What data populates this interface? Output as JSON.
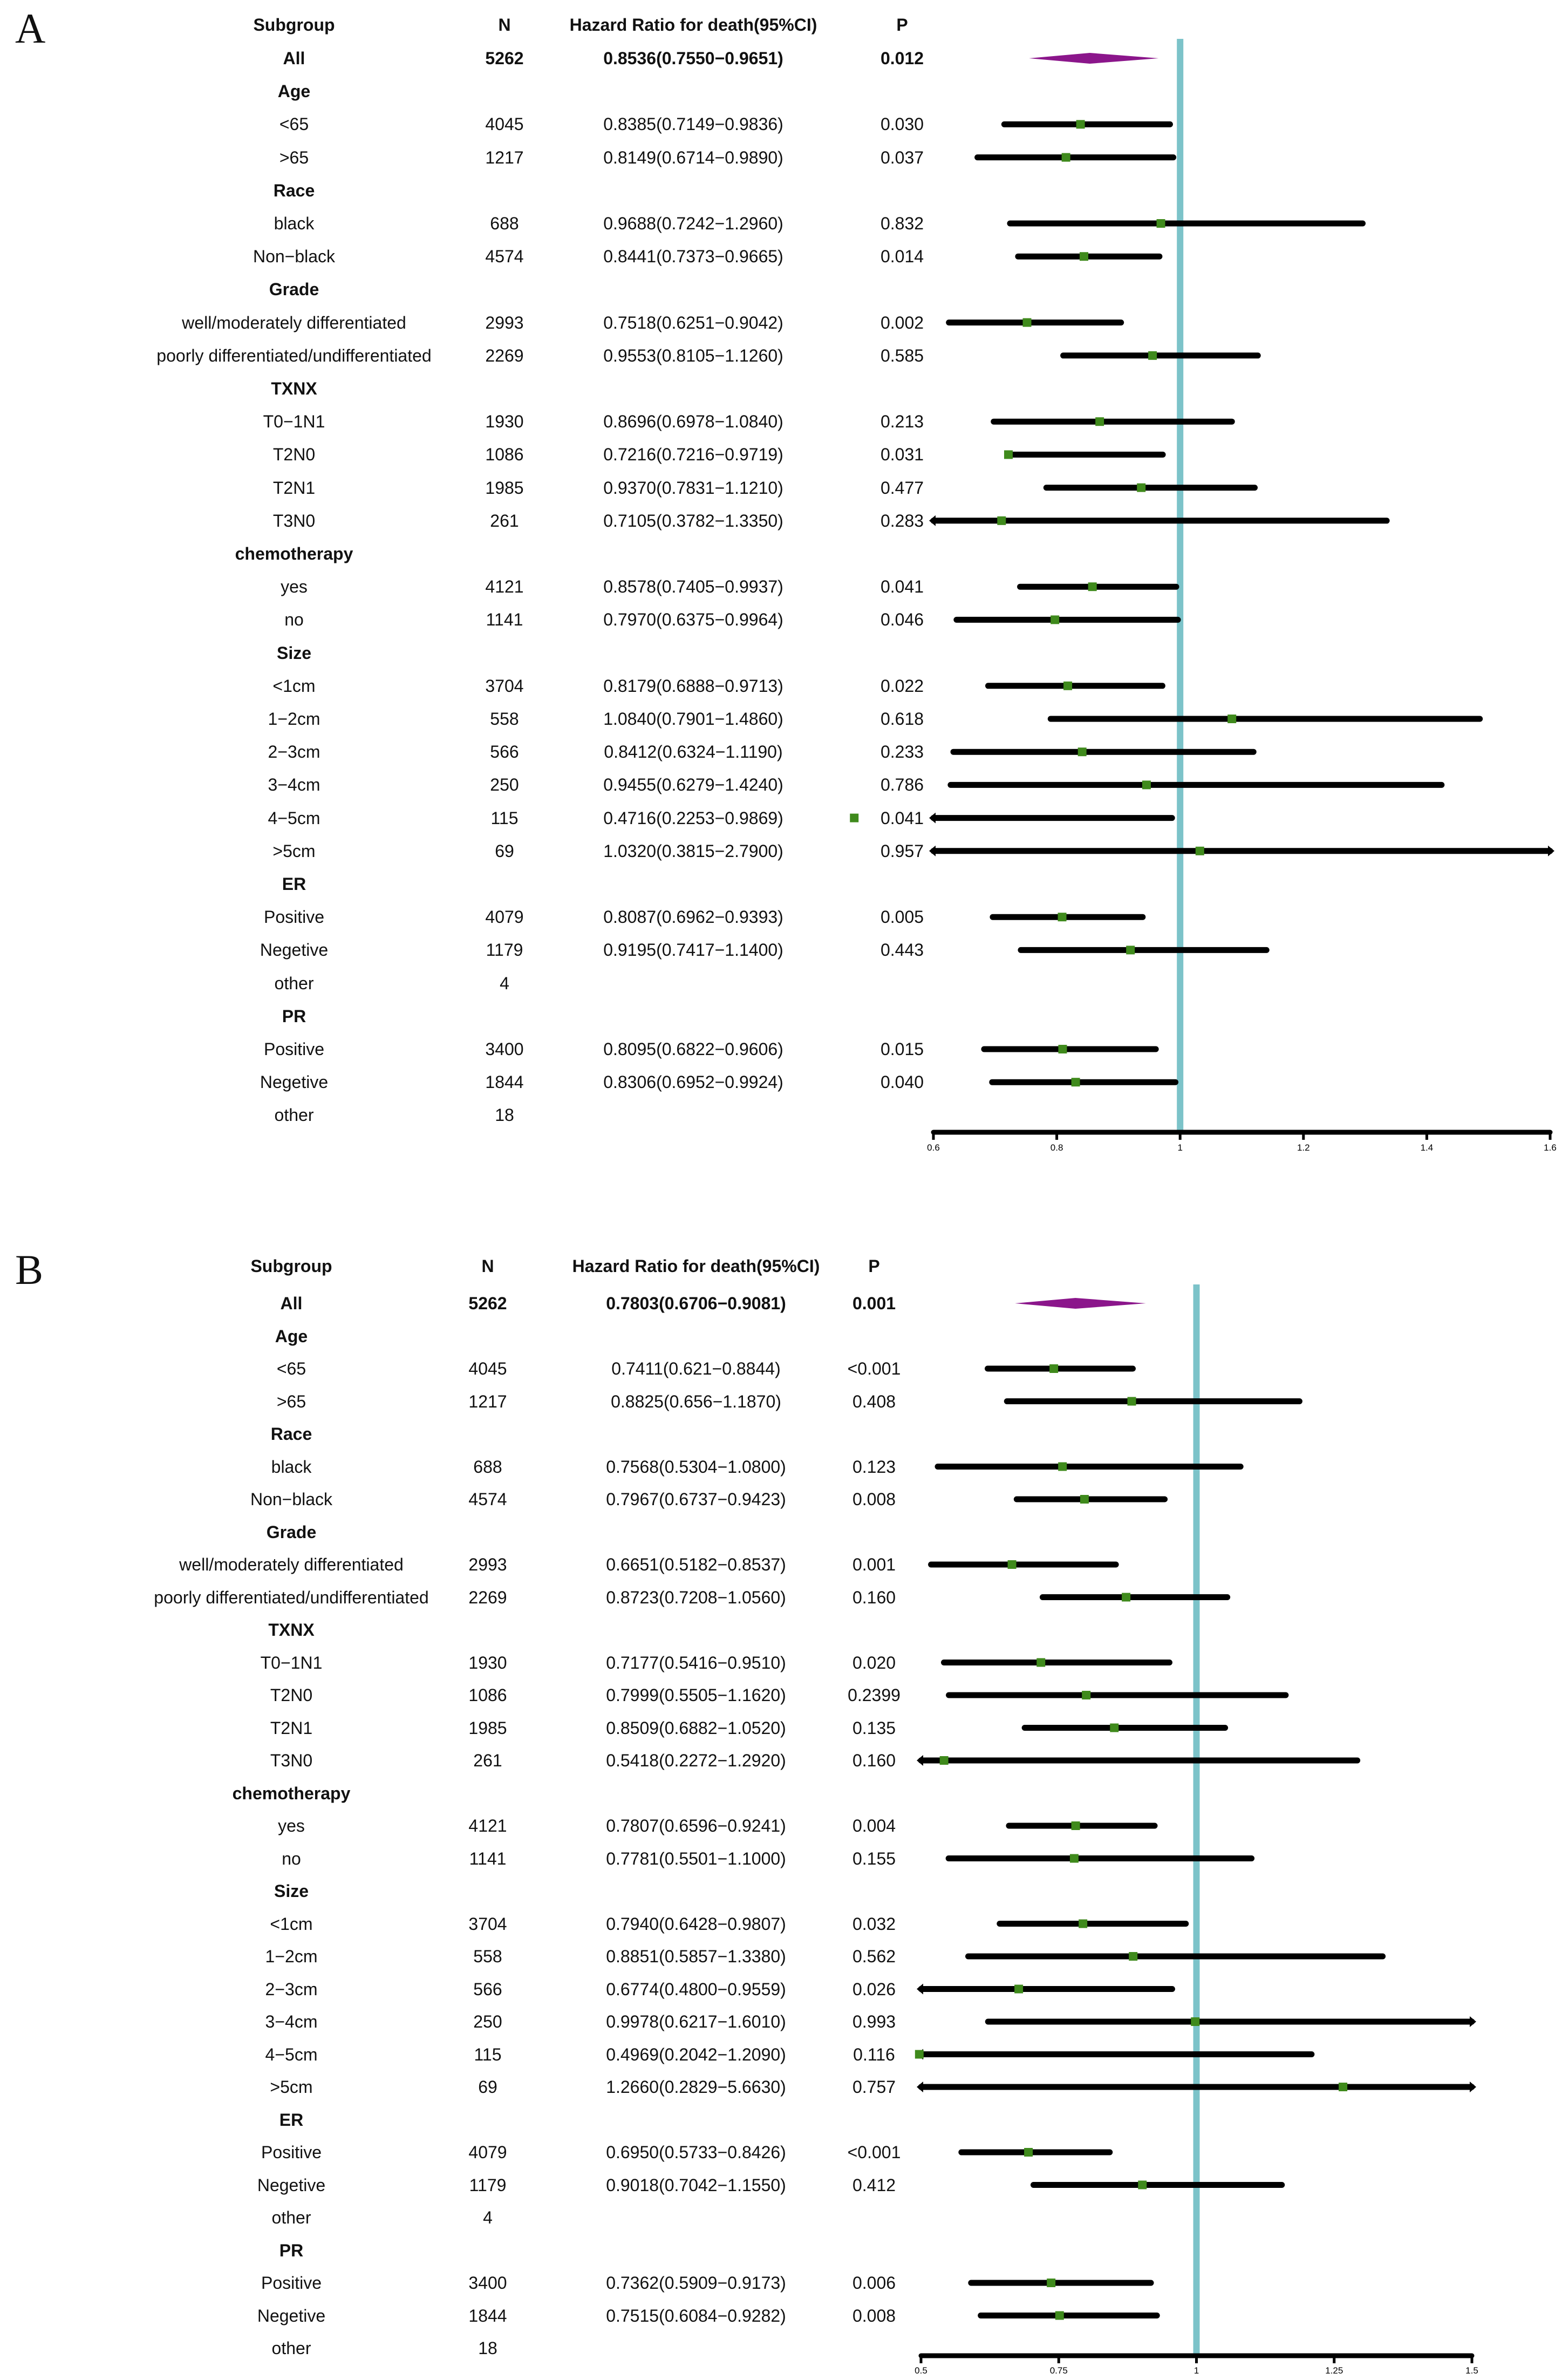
{
  "panels": [
    {
      "label": "A",
      "headers": {
        "subgroup": "Subgroup",
        "n": "N",
        "hr": "Hazard Ratio for  death(95%CI)",
        "p": "P"
      },
      "rows": [
        {
          "label": "All",
          "n": "5262",
          "hr_text": "0.8536(0.7550−0.9651)",
          "p": "0.012",
          "bold": true,
          "overall": true,
          "est": 0.8536,
          "lo": 0.755,
          "hi": 0.9651
        },
        {
          "label": "Age",
          "heading": true
        },
        {
          "label": "<65",
          "n": "4045",
          "hr_text": "0.8385(0.7149−0.9836)",
          "p": "0.030",
          "est": 0.8385,
          "lo": 0.7149,
          "hi": 0.9836
        },
        {
          "label": ">65",
          "n": "1217",
          "hr_text": "0.8149(0.6714−0.9890)",
          "p": "0.037",
          "est": 0.8149,
          "lo": 0.6714,
          "hi": 0.989
        },
        {
          "label": "Race",
          "heading": true
        },
        {
          "label": "black",
          "n": "688",
          "hr_text": "0.9688(0.7242−1.2960)",
          "p": "0.832",
          "est": 0.9688,
          "lo": 0.7242,
          "hi": 1.296
        },
        {
          "label": "Non−black",
          "n": "4574",
          "hr_text": "0.8441(0.7373−0.9665)",
          "p": "0.014",
          "est": 0.8441,
          "lo": 0.7373,
          "hi": 0.9665
        },
        {
          "label": "Grade",
          "heading": true
        },
        {
          "label": "well/moderately differentiated",
          "n": "2993",
          "hr_text": "0.7518(0.6251−0.9042)",
          "p": "0.002",
          "est": 0.7518,
          "lo": 0.6251,
          "hi": 0.9042
        },
        {
          "label": "poorly differentiated/undifferentiated",
          "n": "2269",
          "hr_text": "0.9553(0.8105−1.1260)",
          "p": "0.585",
          "est": 0.9553,
          "lo": 0.8105,
          "hi": 1.126
        },
        {
          "label": "TXNX",
          "heading": true
        },
        {
          "label": "T0−1N1",
          "n": "1930",
          "hr_text": "0.8696(0.6978−1.0840)",
          "p": "0.213",
          "est": 0.8696,
          "lo": 0.6978,
          "hi": 1.084
        },
        {
          "label": "T2N0",
          "n": "1086",
          "hr_text": "0.7216(0.7216−0.9719)",
          "p": "0.031",
          "est": 0.7216,
          "lo": 0.7216,
          "hi": 0.9719
        },
        {
          "label": "T2N1",
          "n": "1985",
          "hr_text": "0.9370(0.7831−1.1210)",
          "p": "0.477",
          "est": 0.937,
          "lo": 0.7831,
          "hi": 1.121
        },
        {
          "label": "T3N0",
          "n": "261",
          "hr_text": "0.7105(0.3782−1.3350)",
          "p": "0.283",
          "est": 0.7105,
          "lo": 0.3782,
          "hi": 1.335
        },
        {
          "label": "chemotherapy",
          "heading": true
        },
        {
          "label": "yes",
          "n": "4121",
          "hr_text": "0.8578(0.7405−0.9937)",
          "p": "0.041",
          "est": 0.8578,
          "lo": 0.7405,
          "hi": 0.9937
        },
        {
          "label": "no",
          "n": "1141",
          "hr_text": "0.7970(0.6375−0.9964)",
          "p": "0.046",
          "est": 0.797,
          "lo": 0.6375,
          "hi": 0.9964
        },
        {
          "label": "Size",
          "heading": true
        },
        {
          "label": "<1cm",
          "n": "3704",
          "hr_text": "0.8179(0.6888−0.9713)",
          "p": "0.022",
          "est": 0.8179,
          "lo": 0.6888,
          "hi": 0.9713
        },
        {
          "label": "1−2cm",
          "n": "558",
          "hr_text": "1.0840(0.7901−1.4860)",
          "p": "0.618",
          "est": 1.084,
          "lo": 0.7901,
          "hi": 1.486
        },
        {
          "label": "2−3cm",
          "n": "566",
          "hr_text": "0.8412(0.6324−1.1190)",
          "p": "0.233",
          "est": 0.8412,
          "lo": 0.6324,
          "hi": 1.119
        },
        {
          "label": "3−4cm",
          "n": "250",
          "hr_text": "0.9455(0.6279−1.4240)",
          "p": "0.786",
          "est": 0.9455,
          "lo": 0.6279,
          "hi": 1.424
        },
        {
          "label": "4−5cm",
          "n": "115",
          "hr_text": "0.4716(0.2253−0.9869)",
          "p": "0.041",
          "est": 0.4716,
          "lo": 0.2253,
          "hi": 0.9869
        },
        {
          "label": ">5cm",
          "n": "69",
          "hr_text": "1.0320(0.3815−2.7900)",
          "p": "0.957",
          "est": 1.032,
          "lo": 0.3815,
          "hi": 2.79
        },
        {
          "label": "ER",
          "heading": true
        },
        {
          "label": "Positive",
          "n": "4079",
          "hr_text": "0.8087(0.6962−0.9393)",
          "p": "0.005",
          "est": 0.8087,
          "lo": 0.6962,
          "hi": 0.9393
        },
        {
          "label": "Negetive",
          "n": "1179",
          "hr_text": "0.9195(0.7417−1.1400)",
          "p": "0.443",
          "est": 0.9195,
          "lo": 0.7417,
          "hi": 1.14
        },
        {
          "label": "other",
          "n": "4"
        },
        {
          "label": "PR",
          "heading": true
        },
        {
          "label": "Positive",
          "n": "3400",
          "hr_text": "0.8095(0.6822−0.9606)",
          "p": "0.015",
          "est": 0.8095,
          "lo": 0.6822,
          "hi": 0.9606
        },
        {
          "label": "Negetive",
          "n": "1844",
          "hr_text": "0.8306(0.6952−0.9924)",
          "p": "0.040",
          "est": 0.8306,
          "lo": 0.6952,
          "hi": 0.9924
        },
        {
          "label": "other",
          "n": "18"
        }
      ],
      "axis": {
        "min": 0.6,
        "max": 1.6,
        "ticks": [
          "0.6",
          "0.8",
          "1",
          "1.2",
          "1.4",
          "1.6"
        ],
        "ref": 1
      }
    },
    {
      "label": "B",
      "headers": {
        "subgroup": "Subgroup",
        "n": "N",
        "hr": "Hazard Ratio for  death(95%CI)",
        "p": "P"
      },
      "rows": [
        {
          "label": "All",
          "n": "5262",
          "hr_text": "0.7803(0.6706−0.9081)",
          "p": "0.001",
          "bold": true,
          "overall": true,
          "est": 0.7803,
          "lo": 0.6706,
          "hi": 0.9081
        },
        {
          "label": "Age",
          "heading": true
        },
        {
          "label": "<65",
          "n": "4045",
          "hr_text": "0.7411(0.621−0.8844)",
          "p": "<0.001",
          "est": 0.7411,
          "lo": 0.621,
          "hi": 0.8844
        },
        {
          "label": ">65",
          "n": "1217",
          "hr_text": "0.8825(0.656−1.1870)",
          "p": "0.408",
          "est": 0.8825,
          "lo": 0.656,
          "hi": 1.187
        },
        {
          "label": "Race",
          "heading": true
        },
        {
          "label": "black",
          "n": "688",
          "hr_text": "0.7568(0.5304−1.0800)",
          "p": "0.123",
          "est": 0.7568,
          "lo": 0.5304,
          "hi": 1.08
        },
        {
          "label": "Non−black",
          "n": "4574",
          "hr_text": "0.7967(0.6737−0.9423)",
          "p": "0.008",
          "est": 0.7967,
          "lo": 0.6737,
          "hi": 0.9423
        },
        {
          "label": "Grade",
          "heading": true
        },
        {
          "label": "well/moderately differentiated",
          "n": "2993",
          "hr_text": "0.6651(0.5182−0.8537)",
          "p": "0.001",
          "est": 0.6651,
          "lo": 0.5182,
          "hi": 0.8537
        },
        {
          "label": "poorly differentiated/undifferentiated",
          "n": "2269",
          "hr_text": "0.8723(0.7208−1.0560)",
          "p": "0.160",
          "est": 0.8723,
          "lo": 0.7208,
          "hi": 1.056
        },
        {
          "label": "TXNX",
          "heading": true
        },
        {
          "label": "T0−1N1",
          "n": "1930",
          "hr_text": "0.7177(0.5416−0.9510)",
          "p": "0.020",
          "est": 0.7177,
          "lo": 0.5416,
          "hi": 0.951
        },
        {
          "label": "T2N0",
          "n": "1086",
          "hr_text": "0.7999(0.5505−1.1620)",
          "p": "0.2399",
          "est": 0.7999,
          "lo": 0.5505,
          "hi": 1.162
        },
        {
          "label": "T2N1",
          "n": "1985",
          "hr_text": "0.8509(0.6882−1.0520)",
          "p": "0.135",
          "est": 0.8509,
          "lo": 0.6882,
          "hi": 1.052
        },
        {
          "label": "T3N0",
          "n": "261",
          "hr_text": "0.5418(0.2272−1.2920)",
          "p": "0.160",
          "est": 0.5418,
          "lo": 0.2272,
          "hi": 1.292
        },
        {
          "label": "chemotherapy",
          "heading": true
        },
        {
          "label": "yes",
          "n": "4121",
          "hr_text": "0.7807(0.6596−0.9241)",
          "p": "0.004",
          "est": 0.7807,
          "lo": 0.6596,
          "hi": 0.9241
        },
        {
          "label": "no",
          "n": "1141",
          "hr_text": "0.7781(0.5501−1.1000)",
          "p": "0.155",
          "est": 0.7781,
          "lo": 0.5501,
          "hi": 1.1
        },
        {
          "label": "Size",
          "heading": true
        },
        {
          "label": "<1cm",
          "n": "3704",
          "hr_text": "0.7940(0.6428−0.9807)",
          "p": "0.032",
          "est": 0.794,
          "lo": 0.6428,
          "hi": 0.9807
        },
        {
          "label": "1−2cm",
          "n": "558",
          "hr_text": "0.8851(0.5857−1.3380)",
          "p": "0.562",
          "est": 0.8851,
          "lo": 0.5857,
          "hi": 1.338
        },
        {
          "label": "2−3cm",
          "n": "566",
          "hr_text": "0.6774(0.4800−0.9559)",
          "p": "0.026",
          "est": 0.6774,
          "lo": 0.48,
          "hi": 0.9559
        },
        {
          "label": "3−4cm",
          "n": "250",
          "hr_text": "0.9978(0.6217−1.6010)",
          "p": "0.993",
          "est": 0.9978,
          "lo": 0.6217,
          "hi": 1.601
        },
        {
          "label": "4−5cm",
          "n": "115",
          "hr_text": "0.4969(0.2042−1.2090)",
          "p": "0.116",
          "est": 0.4969,
          "lo": 0.2042,
          "hi": 1.209
        },
        {
          "label": ">5cm",
          "n": "69",
          "hr_text": "1.2660(0.2829−5.6630)",
          "p": "0.757",
          "est": 1.266,
          "lo": 0.2829,
          "hi": 5.663
        },
        {
          "label": "ER",
          "heading": true
        },
        {
          "label": "Positive",
          "n": "4079",
          "hr_text": "0.6950(0.5733−0.8426)",
          "p": "<0.001",
          "est": 0.695,
          "lo": 0.5733,
          "hi": 0.8426
        },
        {
          "label": "Negetive",
          "n": "1179",
          "hr_text": "0.9018(0.7042−1.1550)",
          "p": "0.412",
          "est": 0.9018,
          "lo": 0.7042,
          "hi": 1.155
        },
        {
          "label": "other",
          "n": "4"
        },
        {
          "label": "PR",
          "heading": true
        },
        {
          "label": "Positive",
          "n": "3400",
          "hr_text": "0.7362(0.5909−0.9173)",
          "p": "0.006",
          "est": 0.7362,
          "lo": 0.5909,
          "hi": 0.9173
        },
        {
          "label": "Negetive",
          "n": "1844",
          "hr_text": "0.7515(0.6084−0.9282)",
          "p": "0.008",
          "est": 0.7515,
          "lo": 0.6084,
          "hi": 0.9282
        },
        {
          "label": "other",
          "n": "18"
        }
      ],
      "axis": {
        "min": 0.5,
        "max": 1.5,
        "ticks": [
          "0.5",
          "0.75",
          "1",
          "1.25",
          "1.5"
        ],
        "ref": 1
      }
    }
  ],
  "chart_data": [
    {
      "type": "forest",
      "title": "A",
      "xlim": [
        0.6,
        1.6
      ],
      "xticks": [
        "0.6",
        "0.8",
        "1",
        "1.2",
        "1.4",
        "1.6"
      ],
      "reference_line": 1,
      "series": [
        {
          "name": "All",
          "hr": 0.8536,
          "ci": [
            0.755,
            0.9651
          ]
        },
        {
          "name": "<65",
          "hr": 0.8385,
          "ci": [
            0.7149,
            0.9836
          ]
        },
        {
          "name": ">65",
          "hr": 0.8149,
          "ci": [
            0.6714,
            0.989
          ]
        },
        {
          "name": "black",
          "hr": 0.9688,
          "ci": [
            0.7242,
            1.296
          ]
        },
        {
          "name": "Non−black",
          "hr": 0.8441,
          "ci": [
            0.7373,
            0.9665
          ]
        },
        {
          "name": "well/moderately differentiated",
          "hr": 0.7518,
          "ci": [
            0.6251,
            0.9042
          ]
        },
        {
          "name": "poorly differentiated/undifferentiated",
          "hr": 0.9553,
          "ci": [
            0.8105,
            1.126
          ]
        },
        {
          "name": "T0−1N1",
          "hr": 0.8696,
          "ci": [
            0.6978,
            1.084
          ]
        },
        {
          "name": "T2N0",
          "hr": 0.7216,
          "ci": [
            0.7216,
            0.9719
          ]
        },
        {
          "name": "T2N1",
          "hr": 0.937,
          "ci": [
            0.7831,
            1.121
          ]
        },
        {
          "name": "T3N0",
          "hr": 0.7105,
          "ci": [
            0.3782,
            1.335
          ]
        },
        {
          "name": "yes",
          "hr": 0.8578,
          "ci": [
            0.7405,
            0.9937
          ]
        },
        {
          "name": "no",
          "hr": 0.797,
          "ci": [
            0.6375,
            0.9964
          ]
        },
        {
          "name": "<1cm",
          "hr": 0.8179,
          "ci": [
            0.6888,
            0.9713
          ]
        },
        {
          "name": "1−2cm",
          "hr": 1.084,
          "ci": [
            0.7901,
            1.486
          ]
        },
        {
          "name": "2−3cm",
          "hr": 0.8412,
          "ci": [
            0.6324,
            1.119
          ]
        },
        {
          "name": "3−4cm",
          "hr": 0.9455,
          "ci": [
            0.6279,
            1.424
          ]
        },
        {
          "name": "4−5cm",
          "hr": 0.4716,
          "ci": [
            0.2253,
            0.9869
          ]
        },
        {
          "name": ">5cm",
          "hr": 1.032,
          "ci": [
            0.3815,
            2.79
          ]
        },
        {
          "name": "ER Positive",
          "hr": 0.8087,
          "ci": [
            0.6962,
            0.9393
          ]
        },
        {
          "name": "ER Negetive",
          "hr": 0.9195,
          "ci": [
            0.7417,
            1.14
          ]
        },
        {
          "name": "PR Positive",
          "hr": 0.8095,
          "ci": [
            0.6822,
            0.9606
          ]
        },
        {
          "name": "PR Negetive",
          "hr": 0.8306,
          "ci": [
            0.6952,
            0.9924
          ]
        }
      ]
    },
    {
      "type": "forest",
      "title": "B",
      "xlim": [
        0.5,
        1.5
      ],
      "xticks": [
        "0.5",
        "0.75",
        "1",
        "1.25",
        "1.5"
      ],
      "reference_line": 1,
      "series": [
        {
          "name": "All",
          "hr": 0.7803,
          "ci": [
            0.6706,
            0.9081
          ]
        },
        {
          "name": "<65",
          "hr": 0.7411,
          "ci": [
            0.621,
            0.8844
          ]
        },
        {
          "name": ">65",
          "hr": 0.8825,
          "ci": [
            0.656,
            1.187
          ]
        },
        {
          "name": "black",
          "hr": 0.7568,
          "ci": [
            0.5304,
            1.08
          ]
        },
        {
          "name": "Non−black",
          "hr": 0.7967,
          "ci": [
            0.6737,
            0.9423
          ]
        },
        {
          "name": "well/moderately differentiated",
          "hr": 0.6651,
          "ci": [
            0.5182,
            0.8537
          ]
        },
        {
          "name": "poorly differentiated/undifferentiated",
          "hr": 0.8723,
          "ci": [
            0.7208,
            1.056
          ]
        },
        {
          "name": "T0−1N1",
          "hr": 0.7177,
          "ci": [
            0.5416,
            0.951
          ]
        },
        {
          "name": "T2N0",
          "hr": 0.7999,
          "ci": [
            0.5505,
            1.162
          ]
        },
        {
          "name": "T2N1",
          "hr": 0.8509,
          "ci": [
            0.6882,
            1.052
          ]
        },
        {
          "name": "T3N0",
          "hr": 0.5418,
          "ci": [
            0.2272,
            1.292
          ]
        },
        {
          "name": "yes",
          "hr": 0.7807,
          "ci": [
            0.6596,
            0.9241
          ]
        },
        {
          "name": "no",
          "hr": 0.7781,
          "ci": [
            0.5501,
            1.1
          ]
        },
        {
          "name": "<1cm",
          "hr": 0.794,
          "ci": [
            0.6428,
            0.9807
          ]
        },
        {
          "name": "1−2cm",
          "hr": 0.8851,
          "ci": [
            0.5857,
            1.338
          ]
        },
        {
          "name": "2−3cm",
          "hr": 0.6774,
          "ci": [
            0.48,
            0.9559
          ]
        },
        {
          "name": "3−4cm",
          "hr": 0.9978,
          "ci": [
            0.6217,
            1.601
          ]
        },
        {
          "name": "4−5cm",
          "hr": 0.4969,
          "ci": [
            0.2042,
            1.209
          ]
        },
        {
          "name": ">5cm",
          "hr": 1.266,
          "ci": [
            0.2829,
            5.663
          ]
        },
        {
          "name": "ER Positive",
          "hr": 0.695,
          "ci": [
            0.5733,
            0.8426
          ]
        },
        {
          "name": "ER Negetive",
          "hr": 0.9018,
          "ci": [
            0.7042,
            1.155
          ]
        },
        {
          "name": "PR Positive",
          "hr": 0.7362,
          "ci": [
            0.5909,
            0.9173
          ]
        },
        {
          "name": "PR Negetive",
          "hr": 0.7515,
          "ci": [
            0.6084,
            0.9282
          ]
        }
      ]
    }
  ],
  "colors": {
    "ref_line": "#7cc3c9",
    "point": "#3f8a1c",
    "overall": "#8b168b",
    "ci": "#000000"
  }
}
